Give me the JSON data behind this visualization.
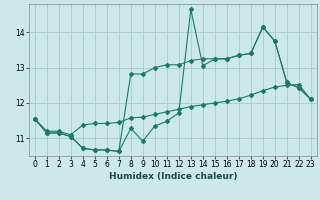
{
  "background_color": "#cce8e8",
  "grid_color": "#aad0d0",
  "line_color": "#1a7a6a",
  "x_ticks": [
    0,
    1,
    2,
    3,
    4,
    5,
    6,
    7,
    8,
    9,
    10,
    11,
    12,
    13,
    14,
    15,
    16,
    17,
    18,
    19,
    20,
    21,
    22,
    23
  ],
  "y_ticks": [
    11,
    12,
    13,
    14
  ],
  "xlim": [
    -0.5,
    23.5
  ],
  "ylim": [
    10.5,
    14.8
  ],
  "xlabel": "Humidex (Indice chaleur)",
  "series1_y": [
    11.55,
    11.15,
    11.15,
    11.05,
    10.72,
    10.67,
    10.67,
    10.63,
    11.28,
    10.92,
    11.35,
    11.48,
    11.72,
    14.65,
    13.05,
    13.25,
    13.25,
    13.35,
    13.4,
    14.15,
    13.75,
    12.58,
    12.43,
    12.1
  ],
  "series2_y": [
    11.55,
    11.15,
    11.15,
    11.05,
    10.72,
    10.67,
    10.67,
    10.63,
    12.82,
    12.82,
    13.0,
    13.08,
    13.08,
    13.2,
    13.25,
    13.25,
    13.25,
    13.35,
    13.4,
    14.15,
    13.75,
    12.58,
    12.43,
    12.1
  ],
  "series3_y": [
    11.55,
    11.2,
    11.2,
    11.1,
    11.38,
    11.42,
    11.42,
    11.45,
    11.58,
    11.6,
    11.68,
    11.75,
    11.82,
    11.9,
    11.95,
    12.0,
    12.05,
    12.12,
    12.22,
    12.35,
    12.45,
    12.5,
    12.52,
    12.1
  ]
}
